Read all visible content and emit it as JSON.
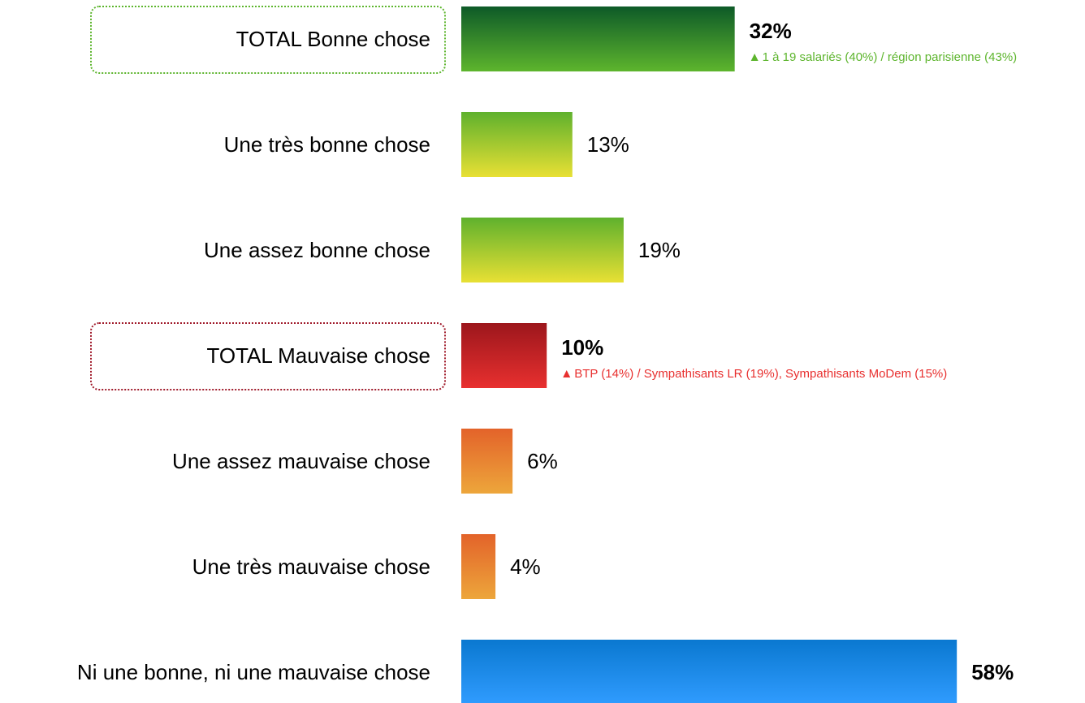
{
  "chart_data": {
    "type": "hbar",
    "categories": [
      "TOTAL Bonne chose",
      "Une très bonne chose",
      "Une assez bonne chose",
      "TOTAL Mauvaise chose",
      "Une assez mauvaise chose",
      "Une très mauvaise chose",
      "Ni une bonne, ni une mauvaise chose"
    ],
    "values": [
      32,
      13,
      19,
      10,
      6,
      4,
      58
    ],
    "value_labels": [
      "32%",
      "13%",
      "19%",
      "10%",
      "6%",
      "4%",
      "58%"
    ],
    "colors": [
      [
        "#0d5a28",
        "#5db52d"
      ],
      [
        "#5fb12d",
        "#e8e034"
      ],
      [
        "#5fb12d",
        "#e8e034"
      ],
      [
        "#9c161c",
        "#e8302f"
      ],
      [
        "#e3632a",
        "#eda63b"
      ],
      [
        "#e3632a",
        "#eda63b"
      ],
      [
        "#0a78d0",
        "#309cff"
      ]
    ],
    "bold": [
      true,
      false,
      false,
      true,
      false,
      false,
      true
    ],
    "outline_colors": [
      "#5db52d",
      null,
      null,
      "#a01a2a",
      null,
      null,
      null
    ],
    "notes": [
      "1 à 19 salariés (40%) / région parisienne (43%)",
      null,
      null,
      "BTP (14%) / Sympathisants LR (19%), Sympathisants MoDem (15%)",
      null,
      null,
      null
    ],
    "note_colors": [
      "#5db52d",
      null,
      null,
      "#e8302f",
      null,
      null,
      null
    ],
    "xlim": [
      0,
      73
    ]
  }
}
